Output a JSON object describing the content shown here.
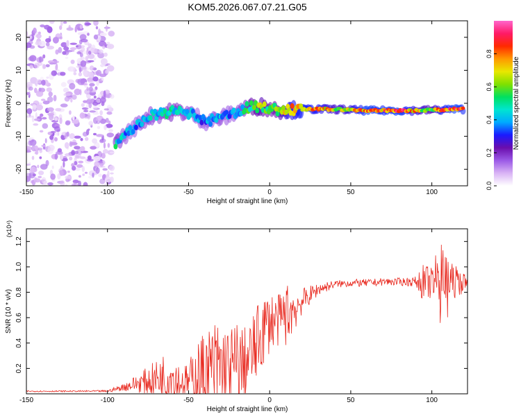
{
  "title": "KOM5.2026.067.07.21.G05",
  "chart_data": [
    {
      "type": "heatmap",
      "xlabel": "Height of straight line (km)",
      "ylabel": "Frequency (Hz)",
      "xlim": [
        -150,
        122
      ],
      "ylim": [
        -25,
        25
      ],
      "xticks": [
        -150,
        -100,
        -50,
        0,
        50,
        100
      ],
      "yticks": [
        -20,
        -10,
        0,
        10,
        20
      ],
      "colorbar": {
        "label": "Normalized spectral amplitude",
        "range": [
          0,
          1
        ],
        "ticks": [
          "0.0",
          "0.2",
          "0.4",
          "0.6",
          "0.8"
        ],
        "colors": [
          "#ffffff",
          "#d9b3f5",
          "#9b59e6",
          "#6a0dad",
          "#1a1aff",
          "#00aaff",
          "#00e5d0",
          "#00e060",
          "#7fe000",
          "#e8e800",
          "#ff9900",
          "#ff2a00",
          "#ff1a66",
          "#ff66cc"
        ]
      },
      "ridge": {
        "x": [
          -95,
          -90,
          -85,
          -80,
          -75,
          -70,
          -65,
          -60,
          -55,
          -50,
          -45,
          -40,
          -35,
          -30,
          -25,
          -20,
          -15,
          -10,
          -5,
          0,
          5,
          10,
          15,
          20,
          30,
          40,
          50,
          60,
          70,
          80,
          90,
          100,
          105,
          110,
          115,
          120
        ],
        "y": [
          -12,
          -10,
          -8,
          -6,
          -4,
          -3.5,
          -3,
          -2.5,
          -2.5,
          -3,
          -4,
          -5.5,
          -5,
          -4.5,
          -3.5,
          -2.5,
          -1.5,
          -1,
          -1,
          -1.5,
          -2,
          -2,
          -2,
          -1.8,
          -1.8,
          -1.8,
          -2,
          -2.2,
          -2.2,
          -2.2,
          -2.2,
          -2,
          -2,
          -1.8,
          -1.8,
          -1.8
        ],
        "amplitude": [
          0.55,
          0.45,
          0.4,
          0.45,
          0.5,
          0.45,
          0.5,
          0.55,
          0.5,
          0.45,
          0.4,
          0.4,
          0.45,
          0.45,
          0.4,
          0.45,
          0.55,
          0.65,
          0.7,
          0.6,
          0.65,
          0.8,
          0.85,
          0.9,
          0.85,
          0.75,
          0.8,
          0.95,
          0.9,
          0.95,
          0.8,
          0.7,
          0.85,
          0.9,
          0.95,
          0.9
        ]
      },
      "noise_region": {
        "x_range": [
          -150,
          -97
        ],
        "y_range": [
          -25,
          25
        ],
        "amplitude": 0.1
      }
    },
    {
      "type": "line",
      "xlabel": "Height of straight line (km)",
      "ylabel": "SNR (10 * v/v)",
      "multiplier": "(x10⁴)",
      "xlim": [
        -150,
        122
      ],
      "ylim": [
        0,
        1.3
      ],
      "xticks": [
        -150,
        -100,
        -50,
        0,
        50,
        100
      ],
      "yticks": [
        0.2,
        0.4,
        0.6,
        0.8,
        1.0,
        1.2
      ],
      "ytick_labels": [
        "0.2",
        "0.4",
        "0.6",
        "0.8",
        "1.0",
        "1.2"
      ],
      "color": "#e8281e",
      "envelope": {
        "x": [
          -150,
          -120,
          -100,
          -90,
          -80,
          -70,
          -60,
          -55,
          -50,
          -45,
          -40,
          -35,
          -30,
          -25,
          -20,
          -15,
          -10,
          -5,
          0,
          5,
          10,
          15,
          20,
          30,
          40,
          50,
          60,
          70,
          80,
          90,
          95,
          100,
          105,
          108,
          112,
          118,
          122
        ],
        "base": [
          0.02,
          0.02,
          0.02,
          0.05,
          0.08,
          0.1,
          0.12,
          0.08,
          0.08,
          0.1,
          0.12,
          0.14,
          0.16,
          0.14,
          0.16,
          0.2,
          0.3,
          0.45,
          0.55,
          0.55,
          0.6,
          0.65,
          0.72,
          0.82,
          0.86,
          0.87,
          0.87,
          0.88,
          0.88,
          0.88,
          0.86,
          0.86,
          0.86,
          0.8,
          0.87,
          0.87,
          0.88
        ],
        "amp": [
          0.005,
          0.005,
          0.008,
          0.03,
          0.08,
          0.15,
          0.25,
          0.12,
          0.15,
          0.3,
          0.35,
          0.4,
          0.42,
          0.35,
          0.4,
          0.3,
          0.3,
          0.3,
          0.25,
          0.2,
          0.25,
          0.2,
          0.1,
          0.05,
          0.03,
          0.03,
          0.03,
          0.03,
          0.03,
          0.04,
          0.15,
          0.12,
          0.35,
          0.5,
          0.15,
          0.1,
          0.03
        ]
      }
    }
  ]
}
